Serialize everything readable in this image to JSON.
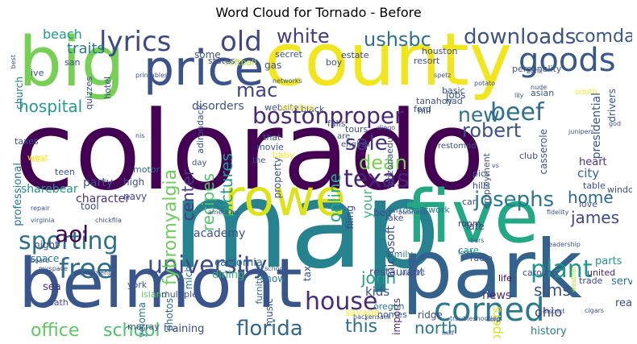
{
  "chart_data": {
    "type": "wordcloud",
    "title": "Word Cloud for Tornado - Before",
    "background": "#ffffff",
    "colormap": "viridis",
    "words": [
      {
        "text": "colorado",
        "color": "#440154"
      },
      {
        "text": "map",
        "color": "#26828e"
      },
      {
        "text": "county",
        "color": "#f1e51d"
      },
      {
        "text": "park",
        "color": "#33638d"
      },
      {
        "text": "belmont",
        "color": "#39568c"
      },
      {
        "text": "five",
        "color": "#22a884"
      },
      {
        "text": "big",
        "color": "#75d054"
      },
      {
        "text": "price",
        "color": "#3b528b"
      },
      {
        "text": "rowe",
        "color": "#dde318"
      },
      {
        "text": "goods",
        "color": "#38588c"
      },
      {
        "text": "bostonproper",
        "color": "#482878"
      },
      {
        "text": "lyrics",
        "color": "#3e4989"
      },
      {
        "text": "sporting",
        "color": "#2c728e"
      },
      {
        "text": "corned",
        "color": "#2a788e"
      },
      {
        "text": "house",
        "color": "#472d7b"
      },
      {
        "text": "university",
        "color": "#3e4a89"
      },
      {
        "text": "beef",
        "color": "#2d708e"
      },
      {
        "text": "old",
        "color": "#404688"
      },
      {
        "text": "free",
        "color": "#2e6e8e"
      },
      {
        "text": "plant",
        "color": "#1f968b"
      },
      {
        "text": "josephs",
        "color": "#2a788e"
      },
      {
        "text": "robert",
        "color": "#3b528b"
      },
      {
        "text": "florida",
        "color": "#31688e"
      },
      {
        "text": "texas",
        "color": "#482475"
      },
      {
        "text": "sale",
        "color": "#46337e"
      },
      {
        "text": "dean",
        "color": "#7ad151"
      },
      {
        "text": "new",
        "color": "#2c728e"
      },
      {
        "text": "mac",
        "color": "#414487"
      },
      {
        "text": "aol",
        "color": "#440154"
      },
      {
        "text": "white",
        "color": "#443983"
      },
      {
        "text": "downloads",
        "color": "#3b528b"
      },
      {
        "text": "comda",
        "color": "#39568c"
      },
      {
        "text": "ushsbc",
        "color": "#2c728e"
      },
      {
        "text": "hospital",
        "color": "#1f9e89"
      },
      {
        "text": "office",
        "color": "#5ec962"
      },
      {
        "text": "school",
        "color": "#4ac16d"
      },
      {
        "text": "this",
        "color": "#2c728e"
      },
      {
        "text": "north",
        "color": "#2a788e"
      },
      {
        "text": "john",
        "color": "#1fa187"
      },
      {
        "text": "sims",
        "color": "#3b528b"
      },
      {
        "text": "james",
        "color": "#3e4989"
      },
      {
        "text": "home",
        "color": "#31688e"
      },
      {
        "text": "fybromyalgia",
        "color": "#6ccd5a"
      },
      {
        "text": "center",
        "color": "#443983"
      },
      {
        "text": "recipes",
        "color": "#52c569"
      },
      {
        "text": "online",
        "color": "#22a884"
      },
      {
        "text": "traits",
        "color": "#2a788e"
      },
      {
        "text": "beach",
        "color": "#1f9e89"
      },
      {
        "text": "ohio",
        "color": "#404688"
      },
      {
        "text": "party",
        "color": "#3b528b"
      },
      {
        "text": "character",
        "color": "#46337e"
      },
      {
        "text": "sharebear",
        "color": "#1f968b"
      },
      {
        "text": "academy",
        "color": "#3b528b"
      },
      {
        "text": "training",
        "color": "#3e4989"
      },
      {
        "text": "pictures",
        "color": "#1f9e89"
      },
      {
        "text": "history",
        "color": "#2a788e"
      },
      {
        "text": "scenic",
        "color": "#31688e"
      },
      {
        "text": "news",
        "color": "#472d7b"
      },
      {
        "text": "kids",
        "color": "#3b528b"
      },
      {
        "text": "city",
        "color": "#31688e"
      },
      {
        "text": "heart",
        "color": "#46337e"
      },
      {
        "text": "parts",
        "color": "#1f968b"
      },
      {
        "text": "united",
        "color": "#482475"
      },
      {
        "text": "service",
        "color": "#2c728e"
      },
      {
        "text": "carolina",
        "color": "#3e4989"
      },
      {
        "text": "trade",
        "color": "#414487"
      },
      {
        "text": "california",
        "color": "#2c728e"
      },
      {
        "text": "dining",
        "color": "#35b779"
      },
      {
        "text": "restaurant",
        "color": "#3b528b"
      },
      {
        "text": "microsoft",
        "color": "#404688"
      },
      {
        "text": "family",
        "color": "#2a788e"
      },
      {
        "text": "care",
        "color": "#22a884"
      },
      {
        "text": "radio",
        "color": "#3b528b"
      },
      {
        "text": "life",
        "color": "#440154"
      },
      {
        "text": "toppers",
        "color": "#d2e21b"
      },
      {
        "text": "real",
        "color": "#3e4989"
      },
      {
        "text": "imports",
        "color": "#482878"
      },
      {
        "text": "homes",
        "color": "#3b528b"
      },
      {
        "text": "savage",
        "color": "#fde725"
      },
      {
        "text": "oregon",
        "color": "#2a788e"
      },
      {
        "text": "ridge",
        "color": "#3e4989"
      },
      {
        "text": "music",
        "color": "#3b528b"
      },
      {
        "text": "photos",
        "color": "#31688e"
      },
      {
        "text": "myeloma",
        "color": "#2a788e"
      },
      {
        "text": "murray",
        "color": "#404688"
      },
      {
        "text": "oath",
        "color": "#3e4989"
      },
      {
        "text": "sea",
        "color": "#46337e"
      },
      {
        "text": "island",
        "color": "#5ec962"
      },
      {
        "text": "york",
        "color": "#3b528b"
      },
      {
        "text": "mich",
        "color": "#2a788e"
      },
      {
        "text": "multiple",
        "color": "#3b528b"
      },
      {
        "text": "furniture",
        "color": "#31688e"
      },
      {
        "text": "show",
        "color": "#2a788e"
      },
      {
        "text": "tax",
        "color": "#3b528b"
      },
      {
        "text": "filing",
        "color": "#3e4989"
      },
      {
        "text": "cartoonetwork",
        "color": "#2a788e"
      },
      {
        "text": "lake",
        "color": "#3b528b"
      },
      {
        "text": "late",
        "color": "#3e4989"
      },
      {
        "text": "room",
        "color": "#46337e"
      },
      {
        "text": "your",
        "color": "#35b779"
      },
      {
        "text": "bed",
        "color": "#3b528b"
      },
      {
        "text": "tool",
        "color": "#3b528b"
      },
      {
        "text": "night",
        "color": "#3e4989"
      },
      {
        "text": "space",
        "color": "#2a788e"
      },
      {
        "text": "high",
        "color": "#3b528b"
      },
      {
        "text": "navy",
        "color": "#3e4989"
      },
      {
        "text": "motor",
        "color": "#31688e"
      },
      {
        "text": "teen",
        "color": "#3b528b"
      },
      {
        "text": "sex",
        "color": "#fde725"
      },
      {
        "text": "west",
        "color": "#fde725"
      },
      {
        "text": "professional",
        "color": "#2a788e"
      },
      {
        "text": "taxes",
        "color": "#3b528b"
      },
      {
        "text": "hotel",
        "color": "#3e4989"
      },
      {
        "text": "quizzes",
        "color": "#3b528b"
      },
      {
        "text": "san",
        "color": "#3b528b"
      },
      {
        "text": "ive",
        "color": "#3b528b"
      },
      {
        "text": "church",
        "color": "#2a788e"
      },
      {
        "text": "softball",
        "color": "#b5de2b"
      },
      {
        "text": "states",
        "color": "#3e4989"
      },
      {
        "text": "some",
        "color": "#3b528b"
      },
      {
        "text": "secret",
        "color": "#3b528b"
      },
      {
        "text": "estate",
        "color": "#3e4989"
      },
      {
        "text": "boy",
        "color": "#3b528b"
      },
      {
        "text": "resort",
        "color": "#3b528b"
      },
      {
        "text": "houston",
        "color": "#3b528b"
      },
      {
        "text": "personality",
        "color": "#3b528b"
      },
      {
        "text": "jobs",
        "color": "#3b528b"
      },
      {
        "text": "gas",
        "color": "#3b528b"
      },
      {
        "text": "disorders",
        "color": "#3b528b"
      },
      {
        "text": "adirondack",
        "color": "#3b528b"
      },
      {
        "text": "website",
        "color": "#3b528b"
      },
      {
        "text": "black",
        "color": "#3b528b"
      },
      {
        "text": "ford",
        "color": "#3b528b"
      },
      {
        "text": "window",
        "color": "#fde725"
      },
      {
        "text": "falls",
        "color": "#3b528b"
      },
      {
        "text": "basic",
        "color": "#3b528b"
      },
      {
        "text": "had",
        "color": "#3b528b"
      },
      {
        "text": "tanahoy",
        "color": "#3b528b"
      },
      {
        "text": "hill",
        "color": "#3b528b"
      },
      {
        "text": "asian",
        "color": "#3b528b"
      },
      {
        "text": "south",
        "color": "#fde725"
      },
      {
        "text": "tours",
        "color": "#3b528b"
      },
      {
        "text": "arizonaedu",
        "color": "#3b528b"
      },
      {
        "text": "club",
        "color": "#3b528b"
      },
      {
        "text": "hills",
        "color": "#3b528b"
      },
      {
        "text": "pics",
        "color": "#3b528b"
      },
      {
        "text": "employment",
        "color": "#3b528b"
      },
      {
        "text": "casserole",
        "color": "#3b528b"
      },
      {
        "text": "presidential",
        "color": "#3b528b"
      },
      {
        "text": "drivers",
        "color": "#3b528b"
      },
      {
        "text": "table",
        "color": "#3b528b"
      },
      {
        "text": "car",
        "color": "#3b528b"
      },
      {
        "text": "windows",
        "color": "#3b528b"
      },
      {
        "text": "love",
        "color": "#3b528b"
      },
      {
        "text": "that",
        "color": "#3b528b"
      },
      {
        "text": "movie",
        "color": "#3b528b"
      },
      {
        "text": "baby",
        "color": "#fde725"
      },
      {
        "text": "property",
        "color": "#3b528b"
      },
      {
        "text": "english",
        "color": "#3b528b"
      },
      {
        "text": "are",
        "color": "#3b528b"
      },
      {
        "text": "the",
        "color": "#3b528b"
      },
      {
        "text": "day",
        "color": "#3b528b"
      },
      {
        "text": "restomod",
        "color": "#3b528b"
      },
      {
        "text": "diego",
        "color": "#3b528b"
      },
      {
        "text": "junipers",
        "color": "#3b528b"
      },
      {
        "text": "fidelity",
        "color": "#3b528b"
      },
      {
        "text": "business",
        "color": "#3b528b"
      },
      {
        "text": "repair",
        "color": "#3b528b"
      },
      {
        "text": "american",
        "color": "#3b528b"
      },
      {
        "text": "virginia",
        "color": "#3b528b"
      },
      {
        "text": "chickfila",
        "color": "#3b528b"
      },
      {
        "text": "board",
        "color": "#3b528b"
      },
      {
        "text": "apartments",
        "color": "#3b528b"
      },
      {
        "text": "myspace",
        "color": "#3b528b"
      },
      {
        "text": "schools",
        "color": "#3b528b"
      },
      {
        "text": "upright",
        "color": "#3b528b"
      },
      {
        "text": "food",
        "color": "#3b528b"
      },
      {
        "text": "bars",
        "color": "#3b528b"
      },
      {
        "text": "hackensack",
        "color": "#3b528b"
      },
      {
        "text": "troubleshooting",
        "color": "#3b528b"
      },
      {
        "text": "milf",
        "color": "#3b528b"
      },
      {
        "text": "corp",
        "color": "#3b528b"
      },
      {
        "text": "district",
        "color": "#3b528b"
      },
      {
        "text": "cigars",
        "color": "#3b528b"
      },
      {
        "text": "weather",
        "color": "#b5de2b"
      },
      {
        "text": "leadership",
        "color": "#3b528b"
      },
      {
        "text": "lily",
        "color": "#3b528b"
      },
      {
        "text": "potato",
        "color": "#3b528b"
      },
      {
        "text": "spetz",
        "color": "#3b528b"
      },
      {
        "text": "nude",
        "color": "#3b528b"
      },
      {
        "text": "bunk",
        "color": "#3b528b"
      },
      {
        "text": "nis",
        "color": "#3b528b"
      },
      {
        "text": "god",
        "color": "#3b528b"
      },
      {
        "text": "best",
        "color": "#3b528b"
      },
      {
        "text": "networks",
        "color": "#3b528b"
      },
      {
        "text": "printables",
        "color": "#3b528b"
      },
      {
        "text": "vs",
        "color": "#3b528b"
      }
    ]
  }
}
